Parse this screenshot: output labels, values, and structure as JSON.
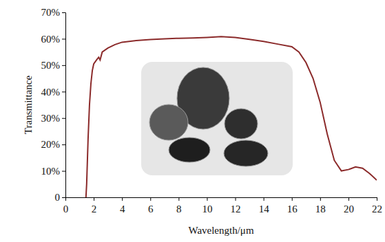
{
  "chart_data": {
    "type": "line",
    "x_label": "Wavelength/μm",
    "y_label": "Transmittance",
    "x": [
      1.45,
      1.5,
      1.6,
      1.7,
      1.8,
      1.9,
      2.0,
      2.2,
      2.35,
      2.45,
      2.6,
      3.0,
      3.5,
      4.0,
      5.0,
      6.0,
      7.0,
      8.0,
      9.0,
      10.0,
      11.0,
      12.0,
      13.0,
      14.0,
      15.0,
      16.0,
      16.5,
      17.0,
      17.5,
      18.0,
      18.5,
      19.0,
      19.5,
      20.0,
      20.5,
      21.0,
      21.5,
      22.0
    ],
    "values": [
      0,
      5,
      22,
      35,
      43,
      48,
      50.5,
      52,
      53,
      52,
      55,
      56.5,
      57.8,
      58.7,
      59.3,
      59.7,
      60,
      60.2,
      60.3,
      60.5,
      60.8,
      60.5,
      59.8,
      59,
      58,
      57,
      55,
      51,
      45,
      36,
      24,
      14,
      10,
      10.5,
      11.5,
      11,
      9,
      6.5
    ],
    "color": "#8b2a2a",
    "xlim": [
      0,
      22
    ],
    "xticks": [
      0,
      2,
      4,
      6,
      8,
      10,
      12,
      14,
      16,
      18,
      20,
      22
    ],
    "ylim": [
      0,
      70
    ],
    "yticks": [
      0,
      {
        "value": 10,
        "label": "10%"
      },
      {
        "value": 20,
        "label": "20%"
      },
      {
        "value": 30,
        "label": "30%"
      },
      {
        "value": 40,
        "label": "40%"
      },
      {
        "value": 50,
        "label": "50%"
      },
      {
        "value": 60,
        "label": "60%"
      },
      {
        "value": 70,
        "label": "70%"
      }
    ],
    "grid": false
  }
}
